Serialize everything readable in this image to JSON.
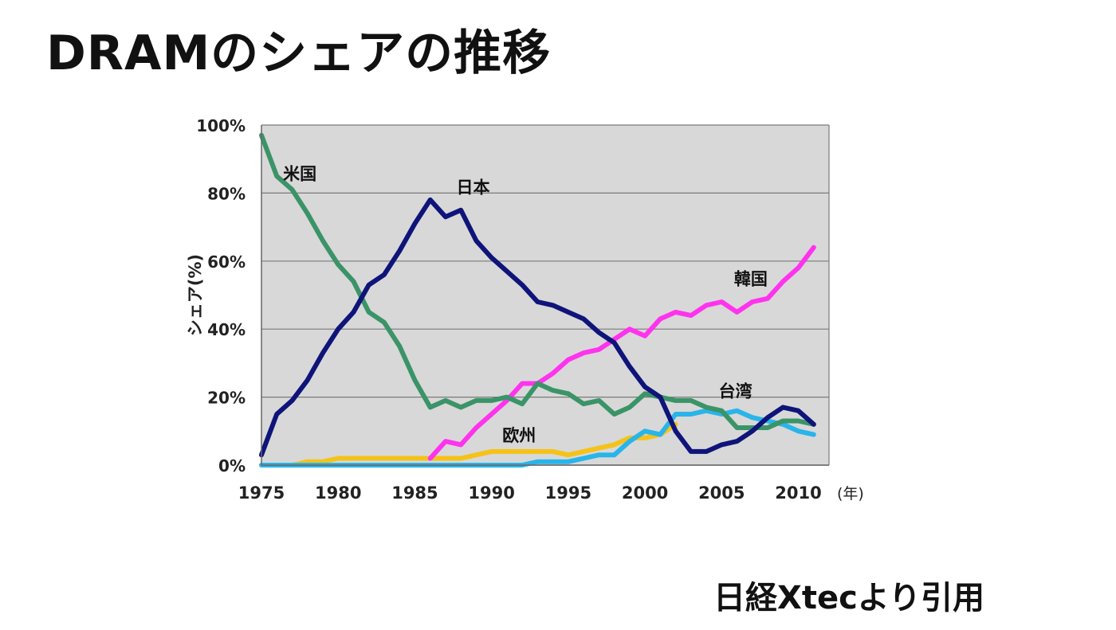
{
  "title": "DRAMのシェアの推移",
  "source": "日経Xtecより引用",
  "colors": {
    "plot_bg": "#d8d8d8",
    "grid": "#7a7a7a",
    "usa": "#3a9467",
    "japan": "#0e1479",
    "korea": "#ff33ee",
    "taiwan": "#29b4ea",
    "europe": "#f5c218"
  },
  "chart_data": {
    "type": "line",
    "ylabel": "シェア(%)",
    "xunit": "(年)",
    "xlim": [
      1975,
      2012
    ],
    "ylim": [
      0,
      100
    ],
    "xticks": [
      "1975",
      "1980",
      "1985",
      "1990",
      "1995",
      "2000",
      "2005",
      "2010"
    ],
    "yticks": [
      "0%",
      "20%",
      "40%",
      "60%",
      "80%",
      "100%"
    ],
    "grid": true,
    "series": [
      {
        "name": "米国",
        "color_key": "usa",
        "x": [
          1975,
          1976,
          1977,
          1978,
          1979,
          1980,
          1981,
          1982,
          1983,
          1984,
          1985,
          1986,
          1987,
          1988,
          1989,
          1990,
          1991,
          1992,
          1993,
          1994,
          1995,
          1996,
          1997,
          1998,
          1999,
          2000,
          2001,
          2002,
          2003,
          2004,
          2005,
          2006,
          2007,
          2008,
          2009,
          2010,
          2011
        ],
        "values": [
          97,
          85,
          81,
          74,
          66,
          59,
          54,
          45,
          42,
          35,
          25,
          17,
          19,
          17,
          19,
          19,
          20,
          18,
          24,
          22,
          21,
          18,
          19,
          15,
          17,
          21,
          20,
          19,
          19,
          17,
          16,
          11,
          11,
          11,
          13,
          13,
          12
        ]
      },
      {
        "name": "日本",
        "color_key": "japan",
        "x": [
          1975,
          1976,
          1977,
          1978,
          1979,
          1980,
          1981,
          1982,
          1983,
          1984,
          1985,
          1986,
          1987,
          1988,
          1989,
          1990,
          1991,
          1992,
          1993,
          1994,
          1995,
          1996,
          1997,
          1998,
          1999,
          2000,
          2001,
          2002,
          2003,
          2004,
          2005,
          2006,
          2007,
          2008,
          2009,
          2010,
          2011
        ],
        "values": [
          3,
          15,
          19,
          25,
          33,
          40,
          45,
          53,
          56,
          63,
          71,
          78,
          73,
          75,
          66,
          61,
          57,
          53,
          48,
          47,
          45,
          43,
          39,
          36,
          29,
          23,
          20,
          10,
          4,
          4,
          6,
          7,
          10,
          14,
          17,
          16,
          12
        ]
      },
      {
        "name": "韓国",
        "color_key": "korea",
        "x": [
          1986,
          1987,
          1988,
          1989,
          1990,
          1991,
          1992,
          1993,
          1994,
          1995,
          1996,
          1997,
          1998,
          1999,
          2000,
          2001,
          2002,
          2003,
          2004,
          2005,
          2006,
          2007,
          2008,
          2009,
          2010,
          2011
        ],
        "values": [
          2,
          7,
          6,
          11,
          15,
          19,
          24,
          24,
          27,
          31,
          33,
          34,
          37,
          40,
          38,
          43,
          45,
          44,
          47,
          48,
          45,
          48,
          49,
          54,
          58,
          64
        ]
      },
      {
        "name": "台湾",
        "color_key": "taiwan",
        "x": [
          1975,
          1976,
          1977,
          1978,
          1979,
          1980,
          1981,
          1982,
          1983,
          1984,
          1985,
          1986,
          1987,
          1988,
          1989,
          1990,
          1991,
          1992,
          1993,
          1994,
          1995,
          1996,
          1997,
          1998,
          1999,
          2000,
          2001,
          2002,
          2003,
          2004,
          2005,
          2006,
          2007,
          2008,
          2009,
          2010,
          2011
        ],
        "values": [
          0,
          0,
          0,
          0,
          0,
          0,
          0,
          0,
          0,
          0,
          0,
          0,
          0,
          0,
          0,
          0,
          0,
          0,
          1,
          1,
          1,
          2,
          3,
          3,
          7,
          10,
          9,
          15,
          15,
          16,
          15,
          16,
          14,
          13,
          12,
          10,
          9
        ]
      },
      {
        "name": "欧州",
        "color_key": "europe",
        "x": [
          1975,
          1976,
          1977,
          1978,
          1979,
          1980,
          1981,
          1982,
          1983,
          1984,
          1985,
          1986,
          1987,
          1988,
          1989,
          1990,
          1991,
          1992,
          1993,
          1994,
          1995,
          1996,
          1997,
          1998,
          1999,
          2000,
          2001,
          2002
        ],
        "values": [
          0,
          0,
          0,
          1,
          1,
          2,
          2,
          2,
          2,
          2,
          2,
          2,
          2,
          2,
          3,
          4,
          4,
          4,
          4,
          4,
          3,
          4,
          5,
          6,
          8,
          8,
          9,
          12
        ]
      }
    ],
    "labels": [
      {
        "text": "米国",
        "series": "usa",
        "x": 1977.5,
        "y": 84
      },
      {
        "text": "日本",
        "series": "japan",
        "x": 1988.8,
        "y": 80
      },
      {
        "text": "韓国",
        "series": "korea",
        "x": 2006.9,
        "y": 53
      },
      {
        "text": "台湾",
        "series": "taiwan",
        "x": 2005.9,
        "y": 20
      },
      {
        "text": "欧州",
        "series": "europe",
        "x": 1991.8,
        "y": 7
      }
    ]
  }
}
